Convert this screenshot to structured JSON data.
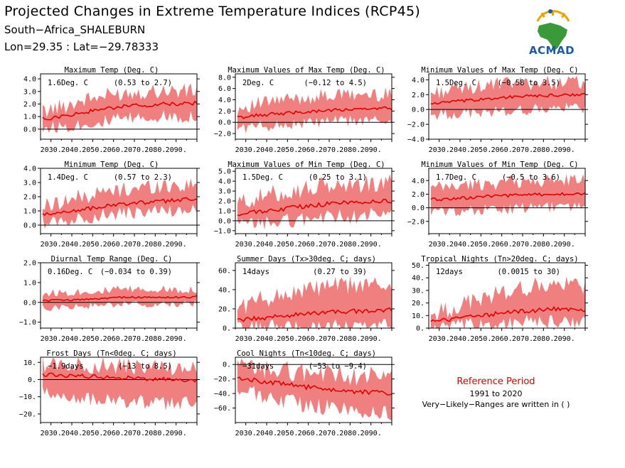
{
  "header": {
    "title": "Projected Changes in Extreme Temperature Indices (RCP45)",
    "region": "South−Africa_SHALEBURN",
    "coords": "Lon=29.35 : Lat=−29.78333"
  },
  "logo": {
    "text": "ACMAD",
    "icon": "africa-map-logo-icon"
  },
  "reference": {
    "title": "Reference Period",
    "years": "1991 to 2020",
    "note": "Very−Likely−Ranges are written in ( )"
  },
  "colors": {
    "band": "#f08080",
    "median": "#e00000",
    "zero_line": "#000000"
  },
  "chart_data": [
    {
      "type": "area",
      "title": "Maximum Temp (Deg. C)",
      "summary": "1.6Deg. C",
      "range": "(0.53 to 2.7)",
      "xticks": [
        "2030.",
        "2040.",
        "2050.",
        "2060.",
        "2070.",
        "2080.",
        "2090."
      ],
      "ylim": [
        -0.8,
        4.4
      ],
      "yticks": [
        0,
        1,
        2,
        3,
        4
      ],
      "ytick_labels": [
        "0.0",
        "1.0",
        "2.0",
        "3.0",
        "4.0"
      ],
      "x": [
        2026,
        2035,
        2045,
        2055,
        2065,
        2075,
        2085,
        2095,
        2100
      ],
      "median": [
        0.8,
        1.0,
        1.3,
        1.6,
        1.8,
        1.9,
        2.0,
        2.0,
        2.1
      ],
      "lower": [
        0.1,
        0.2,
        0.4,
        0.6,
        0.8,
        0.9,
        1.0,
        1.0,
        1.1
      ],
      "upper": [
        1.4,
        1.8,
        2.3,
        2.6,
        2.9,
        3.0,
        3.1,
        3.0,
        3.1
      ]
    },
    {
      "type": "area",
      "title": "Maximum Values of Max Temp (Deg. C)",
      "summary": "2Deg. C",
      "range": "(−0.12 to 4.5)",
      "xticks": [
        "2030.",
        "2040.",
        "2050.",
        "2060.",
        "2070.",
        "2080.",
        "2090."
      ],
      "ylim": [
        -3,
        8.6
      ],
      "yticks": [
        -2,
        0,
        2,
        4,
        6,
        8
      ],
      "ytick_labels": [
        "−2.0",
        "0.0",
        "2.0",
        "4.0",
        "6.0",
        "8.0"
      ],
      "x": [
        2026,
        2035,
        2045,
        2055,
        2065,
        2075,
        2085,
        2095,
        2100
      ],
      "median": [
        0.8,
        1.2,
        1.5,
        1.8,
        2.0,
        2.2,
        2.3,
        2.4,
        2.5
      ],
      "lower": [
        -1.0,
        -0.8,
        -0.5,
        -0.3,
        0.0,
        0.2,
        0.3,
        0.3,
        0.4
      ],
      "upper": [
        2.5,
        3.2,
        3.8,
        4.2,
        4.6,
        4.8,
        4.9,
        4.9,
        5.0
      ]
    },
    {
      "type": "area",
      "title": "Minimum Values of Max Temp (Deg. C)",
      "summary": "1.5Deg. C",
      "range": "(−0.58 to 3.5)",
      "xticks": [
        "2030.",
        "2040.",
        "2050.",
        "2060.",
        "2070.",
        "2080.",
        "2090."
      ],
      "ylim": [
        -4,
        4.8
      ],
      "yticks": [
        -4,
        -2,
        0,
        2,
        4
      ],
      "ytick_labels": [
        "−4.0",
        "−2.0",
        "0.0",
        "2.0",
        "4.0"
      ],
      "x": [
        2026,
        2035,
        2045,
        2055,
        2065,
        2075,
        2085,
        2095,
        2100
      ],
      "median": [
        0.8,
        1.0,
        1.2,
        1.5,
        1.7,
        1.8,
        1.9,
        2.0,
        2.0
      ],
      "lower": [
        -0.8,
        -0.6,
        -0.5,
        -0.3,
        -0.2,
        0.0,
        0.1,
        0.2,
        0.3
      ],
      "upper": [
        2.2,
        2.6,
        3.0,
        3.3,
        3.5,
        3.6,
        3.6,
        3.7,
        3.7
      ]
    },
    {
      "type": "area",
      "title": "Minimum Temp (Deg. C)",
      "summary": "1.4Deg. C",
      "range": "(0.57 to 2.3)",
      "xticks": [
        "2030.",
        "2040.",
        "2050.",
        "2060.",
        "2070.",
        "2080.",
        "2090."
      ],
      "ylim": [
        -0.6,
        4.0
      ],
      "yticks": [
        0,
        1,
        2,
        3,
        4
      ],
      "ytick_labels": [
        "0.0",
        "1.0",
        "2.0",
        "3.0",
        "4.0"
      ],
      "x": [
        2026,
        2035,
        2045,
        2055,
        2065,
        2075,
        2085,
        2095,
        2100
      ],
      "median": [
        0.7,
        0.9,
        1.1,
        1.3,
        1.5,
        1.6,
        1.7,
        1.8,
        1.8
      ],
      "lower": [
        0.2,
        0.3,
        0.5,
        0.7,
        0.8,
        0.9,
        1.0,
        1.0,
        1.1
      ],
      "upper": [
        1.3,
        1.7,
        2.0,
        2.3,
        2.5,
        2.7,
        2.8,
        2.8,
        2.9
      ]
    },
    {
      "type": "area",
      "title": "Maximum Values of Min Temp (Deg. C)",
      "summary": "1.5Deg. C",
      "range": "(0.25 to 3.1)",
      "xticks": [
        "2030.",
        "2040.",
        "2050.",
        "2060.",
        "2070.",
        "2080.",
        "2090."
      ],
      "ylim": [
        -1.3,
        5.3
      ],
      "yticks": [
        -1,
        0,
        1,
        2,
        3,
        4,
        5
      ],
      "ytick_labels": [
        "−1.0",
        "0.0",
        "1.0",
        "2.0",
        "3.0",
        "4.0",
        "5.0"
      ],
      "x": [
        2026,
        2035,
        2045,
        2055,
        2065,
        2075,
        2085,
        2095,
        2100
      ],
      "median": [
        0.6,
        0.9,
        1.1,
        1.4,
        1.6,
        1.8,
        1.9,
        2.0,
        2.0
      ],
      "lower": [
        -0.5,
        -0.3,
        -0.1,
        0.1,
        0.3,
        0.4,
        0.5,
        0.6,
        0.6
      ],
      "upper": [
        1.8,
        2.3,
        2.8,
        3.1,
        3.4,
        3.6,
        3.7,
        3.7,
        3.8
      ]
    },
    {
      "type": "area",
      "title": "Minimum Values of Min Temp (Deg. C)",
      "summary": "1.7Deg. C",
      "range": "(−0.5 to 3.6)",
      "xticks": [
        "2030.",
        "2040.",
        "2050.",
        "2060.",
        "2070.",
        "2080.",
        "2090."
      ],
      "ylim": [
        -3.8,
        5.8
      ],
      "yticks": [
        -2,
        0,
        2,
        4
      ],
      "ytick_labels": [
        "−2.0",
        "0.0",
        "2.0",
        "4.0"
      ],
      "x": [
        2026,
        2035,
        2045,
        2055,
        2065,
        2075,
        2085,
        2095,
        2100
      ],
      "median": [
        1.2,
        1.3,
        1.5,
        1.7,
        1.8,
        1.9,
        2.0,
        2.0,
        2.0
      ],
      "lower": [
        -0.6,
        -0.5,
        -0.4,
        -0.3,
        -0.2,
        0.0,
        0.1,
        0.2,
        0.2
      ],
      "upper": [
        2.8,
        3.1,
        3.4,
        3.6,
        3.8,
        3.9,
        4.0,
        4.0,
        4.1
      ]
    },
    {
      "type": "area",
      "title": "Diurnal Temp Range (Deg. C)",
      "summary": "0.16Deg. C",
      "range": "(−0.034 to 0.39)",
      "xticks": [
        "2030.",
        "2040.",
        "2050.",
        "2060.",
        "2070.",
        "2080.",
        "2090."
      ],
      "ylim": [
        -1.3,
        2.0
      ],
      "yticks": [
        -1,
        0,
        1,
        2
      ],
      "ytick_labels": [
        "−1.0",
        "0.0",
        "1.0",
        "2.0"
      ],
      "x": [
        2026,
        2035,
        2045,
        2055,
        2065,
        2075,
        2085,
        2095,
        2100
      ],
      "median": [
        0.1,
        0.1,
        0.15,
        0.2,
        0.25,
        0.25,
        0.25,
        0.25,
        0.3
      ],
      "lower": [
        -0.3,
        -0.25,
        -0.2,
        -0.15,
        -0.1,
        -0.1,
        -0.1,
        -0.1,
        -0.05
      ],
      "upper": [
        0.45,
        0.5,
        0.55,
        0.6,
        0.65,
        0.65,
        0.65,
        0.65,
        0.65
      ]
    },
    {
      "type": "area",
      "title": "Summer Days (Tx>30deg. C; days)",
      "summary": "14days",
      "range": "(0.27 to 39)",
      "xticks": [
        "2030.",
        "2040.",
        "2050.",
        "2060.",
        "2070.",
        "2080.",
        "2090."
      ],
      "ylim": [
        0,
        68
      ],
      "yticks": [
        0,
        20,
        40,
        60
      ],
      "ytick_labels": [
        "0.",
        "20.",
        "40.",
        "60."
      ],
      "x": [
        2026,
        2035,
        2045,
        2055,
        2065,
        2075,
        2085,
        2095,
        2100
      ],
      "median": [
        8,
        10,
        12,
        14,
        16,
        17,
        18,
        19,
        19
      ],
      "lower": [
        0.5,
        0.8,
        1,
        1.2,
        1.5,
        1.5,
        1.5,
        1.5,
        1.5
      ],
      "upper": [
        22,
        28,
        34,
        38,
        42,
        44,
        45,
        45,
        46
      ]
    },
    {
      "type": "area",
      "title": "Tropical Nights (Tn>20deg. C; days)",
      "summary": "12days",
      "range": "(0.0015 to 30)",
      "xticks": [
        "2030.",
        "2040.",
        "2050.",
        "2060.",
        "2070.",
        "2080.",
        "2090."
      ],
      "ylim": [
        0,
        52
      ],
      "yticks": [
        0,
        10,
        20,
        30,
        40,
        50
      ],
      "ytick_labels": [
        "0.",
        "10.",
        "20.",
        "30.",
        "40.",
        "50."
      ],
      "x": [
        2026,
        2035,
        2045,
        2055,
        2065,
        2075,
        2085,
        2095,
        2100
      ],
      "median": [
        5,
        7,
        9,
        11,
        13,
        14,
        15,
        15,
        15
      ],
      "lower": [
        0.5,
        1,
        2,
        3,
        4,
        4.5,
        5,
        5,
        5
      ],
      "upper": [
        10,
        15,
        21,
        26,
        30,
        33,
        34,
        34,
        35
      ]
    },
    {
      "type": "area",
      "title": "Frost Days (Tn<0deg. C; days)",
      "summary": "−1.9days",
      "range": "(−13 to 8.5)",
      "xticks": [
        "2030.",
        "2040.",
        "2050.",
        "2060.",
        "2070.",
        "2080.",
        "2090."
      ],
      "ylim": [
        -25,
        13
      ],
      "yticks": [
        -20,
        -10,
        0,
        10
      ],
      "ytick_labels": [
        "−20.",
        "−10.",
        "0.",
        "10."
      ],
      "x": [
        2026,
        2035,
        2045,
        2055,
        2065,
        2075,
        2085,
        2095,
        2100
      ],
      "median": [
        3,
        2.5,
        2,
        1.5,
        1,
        0.5,
        0,
        -0.5,
        -0.5
      ],
      "lower": [
        -8,
        -10,
        -11,
        -12,
        -13,
        -13,
        -14,
        -14,
        -14
      ],
      "upper": [
        9,
        9,
        8.5,
        8,
        7.5,
        7,
        7,
        6.5,
        6.5
      ]
    },
    {
      "type": "area",
      "title": "Cool Nights (Tn<10deg. C; days)",
      "summary": "−31days",
      "range": "(−53 to −9.4)",
      "xticks": [
        "2030.",
        "2040.",
        "2050.",
        "2060.",
        "2070.",
        "2080.",
        "2090."
      ],
      "ylim": [
        -80,
        10
      ],
      "yticks": [
        -60,
        -40,
        -20,
        0
      ],
      "ytick_labels": [
        "−60.",
        "−40.",
        "−20.",
        "0."
      ],
      "x": [
        2026,
        2035,
        2045,
        2055,
        2065,
        2075,
        2085,
        2095,
        2100
      ],
      "median": [
        -18,
        -22,
        -26,
        -30,
        -33,
        -36,
        -38,
        -39,
        -40
      ],
      "lower": [
        -35,
        -42,
        -48,
        -54,
        -58,
        -62,
        -64,
        -66,
        -67
      ],
      "upper": [
        -3,
        -6,
        -8,
        -10,
        -12,
        -14,
        -16,
        -17,
        -17
      ]
    }
  ]
}
